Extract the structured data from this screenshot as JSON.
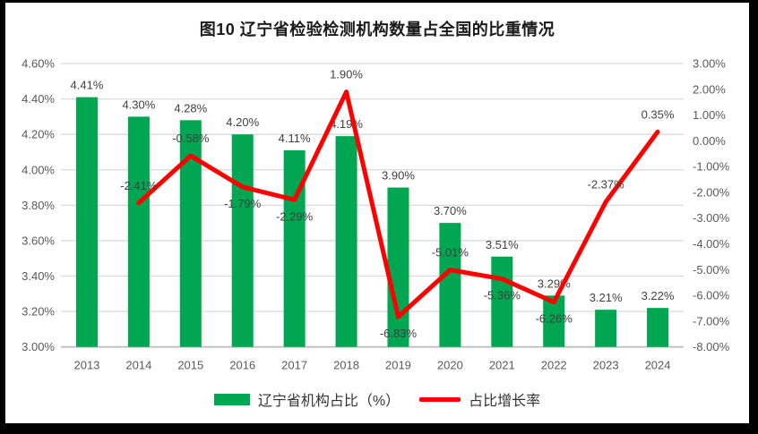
{
  "chart_data": {
    "type": "bar",
    "subtype": "combo-bar-line",
    "title": "图10 辽宁省检验检测机构数量占全国的比重情况",
    "categories": [
      "2013",
      "2014",
      "2015",
      "2016",
      "2017",
      "2018",
      "2019",
      "2020",
      "2021",
      "2022",
      "2023",
      "2024"
    ],
    "series": [
      {
        "name": "辽宁省机构占比（%）",
        "type": "bar",
        "axis": "left",
        "color": "#00A651",
        "values": [
          4.41,
          4.3,
          4.28,
          4.2,
          4.11,
          4.19,
          3.9,
          3.7,
          3.51,
          3.29,
          3.21,
          3.22
        ],
        "labels": [
          "4.41%",
          "4.30%",
          "4.28%",
          "4.20%",
          "4.11%",
          "4.19%",
          "3.90%",
          "3.70%",
          "3.51%",
          "3.29%",
          "3.21%",
          "3.22%"
        ]
      },
      {
        "name": "占比增长率",
        "type": "line",
        "axis": "right",
        "color": "#FF0000",
        "values": [
          null,
          -2.41,
          -0.58,
          -1.79,
          -2.29,
          1.9,
          -6.83,
          -5.01,
          -5.36,
          -6.26,
          -2.37,
          0.35
        ],
        "labels": [
          null,
          "-2.41%",
          "-0.58%",
          "-1.79%",
          "-2.29%",
          "1.90%",
          "-6.83%",
          "-5.01%",
          "-5.36%",
          "-6.26%",
          "-2.37%",
          "0.35%"
        ],
        "label_positions": [
          null,
          "above",
          "above",
          "below",
          "below",
          "above",
          "below",
          "above",
          "below",
          "below",
          "above",
          "above"
        ]
      }
    ],
    "axes": {
      "left": {
        "min": 3.0,
        "max": 4.6,
        "step": 0.2,
        "ticks": [
          "4.60%",
          "4.40%",
          "4.20%",
          "4.00%",
          "3.80%",
          "3.60%",
          "3.40%",
          "3.20%",
          "3.00%"
        ]
      },
      "right": {
        "min": -8.0,
        "max": 3.0,
        "step": 1.0,
        "ticks": [
          "3.00%",
          "2.00%",
          "1.00%",
          "0.00%",
          "-1.00%",
          "-2.00%",
          "-3.00%",
          "-4.00%",
          "-5.00%",
          "-6.00%",
          "-7.00%",
          "-8.00%"
        ]
      }
    },
    "grid": true,
    "legend_position": "bottom",
    "colors": {
      "bar": "#00A651",
      "line": "#FF0000",
      "grid": "#D9D9D9",
      "axis_line": "#BFBFBF",
      "axis_text": "#595959",
      "label_text": "#404040",
      "frame": "#000000",
      "background": "#FFFFFF"
    }
  }
}
